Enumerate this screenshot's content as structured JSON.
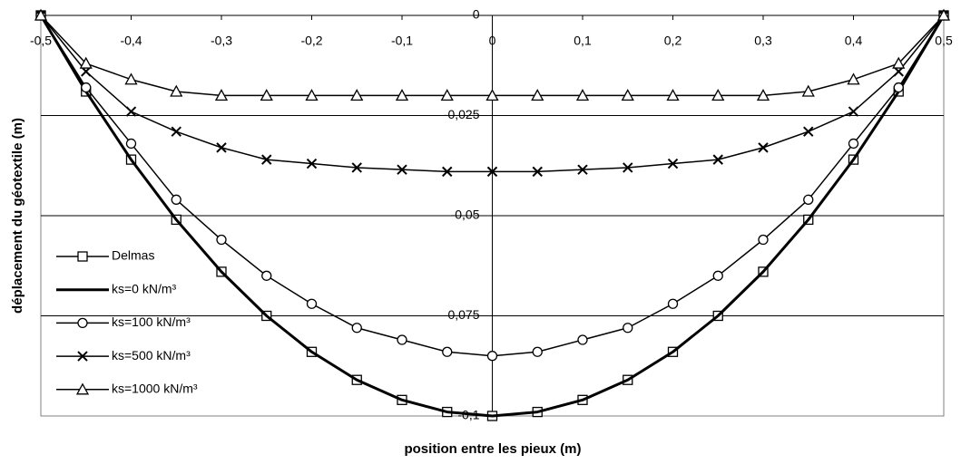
{
  "chart_data": {
    "type": "line",
    "x_label": "position entre les pieux (m)",
    "y_label": "déplacement du géotextile (m)",
    "x": [
      -0.5,
      -0.45,
      -0.4,
      -0.35,
      -0.3,
      -0.25,
      -0.2,
      -0.15,
      -0.1,
      -0.05,
      0,
      0.05,
      0.1,
      0.15,
      0.2,
      0.25,
      0.3,
      0.35,
      0.4,
      0.45,
      0.5
    ],
    "xlim": [
      -0.5,
      0.5
    ],
    "xticks": [
      {
        "value": -0.5,
        "label": "-0,5"
      },
      {
        "value": -0.4,
        "label": "-0,4"
      },
      {
        "value": -0.3,
        "label": "-0,3"
      },
      {
        "value": -0.2,
        "label": "-0,2"
      },
      {
        "value": -0.1,
        "label": "-0,1"
      },
      0,
      {
        "value": 0.1,
        "label": "0,1"
      },
      {
        "value": 0.2,
        "label": "0,2"
      },
      {
        "value": 0.3,
        "label": "0,3"
      },
      {
        "value": 0.4,
        "label": "0,4"
      },
      {
        "value": 0.5,
        "label": "0,5"
      }
    ],
    "ylim": [
      -0.1,
      0
    ],
    "yticks": [
      0,
      {
        "value": -0.025,
        "label": "-0,025"
      },
      {
        "value": -0.05,
        "label": "-0,05"
      },
      {
        "value": -0.075,
        "label": "-0,075"
      },
      {
        "value": -0.1,
        "label": "-0,1"
      }
    ],
    "grid": true,
    "legend": "lower-left",
    "series": [
      {
        "name": "Delmas",
        "color": "#000000",
        "marker": "square",
        "line_width": 1.5,
        "values": [
          0,
          -0.019,
          -0.036,
          -0.051,
          -0.064,
          -0.075,
          -0.084,
          -0.091,
          -0.096,
          -0.099,
          -0.1,
          -0.099,
          -0.096,
          -0.091,
          -0.084,
          -0.075,
          -0.064,
          -0.051,
          -0.036,
          -0.019,
          0
        ]
      },
      {
        "name": "ks=0 kN/m³",
        "color": "#000000",
        "marker": "none",
        "line_width": 3,
        "values": [
          0,
          -0.019,
          -0.036,
          -0.051,
          -0.064,
          -0.075,
          -0.084,
          -0.091,
          -0.096,
          -0.099,
          -0.1,
          -0.099,
          -0.096,
          -0.091,
          -0.084,
          -0.075,
          -0.064,
          -0.051,
          -0.036,
          -0.019,
          0
        ]
      },
      {
        "name": "ks=100 kN/m³",
        "color": "#000000",
        "marker": "circle",
        "line_width": 1.5,
        "values": [
          0,
          -0.018,
          -0.032,
          -0.046,
          -0.056,
          -0.065,
          -0.072,
          -0.078,
          -0.081,
          -0.084,
          -0.085,
          -0.084,
          -0.081,
          -0.078,
          -0.072,
          -0.065,
          -0.056,
          -0.046,
          -0.032,
          -0.018,
          0
        ]
      },
      {
        "name": "ks=500 kN/m³",
        "color": "#000000",
        "marker": "cross",
        "line_width": 1.5,
        "values": [
          0,
          -0.014,
          -0.024,
          -0.029,
          -0.033,
          -0.036,
          -0.037,
          -0.038,
          -0.0385,
          -0.039,
          -0.039,
          -0.039,
          -0.0385,
          -0.038,
          -0.037,
          -0.036,
          -0.033,
          -0.029,
          -0.024,
          -0.014,
          0
        ]
      },
      {
        "name": "ks=1000 kN/m³",
        "color": "#000000",
        "marker": "triangle",
        "line_width": 1.5,
        "values": [
          0,
          -0.012,
          -0.016,
          -0.019,
          -0.02,
          -0.02,
          -0.02,
          -0.02,
          -0.02,
          -0.02,
          -0.02,
          -0.02,
          -0.02,
          -0.02,
          -0.02,
          -0.02,
          -0.02,
          -0.019,
          -0.016,
          -0.012,
          0
        ]
      }
    ]
  }
}
